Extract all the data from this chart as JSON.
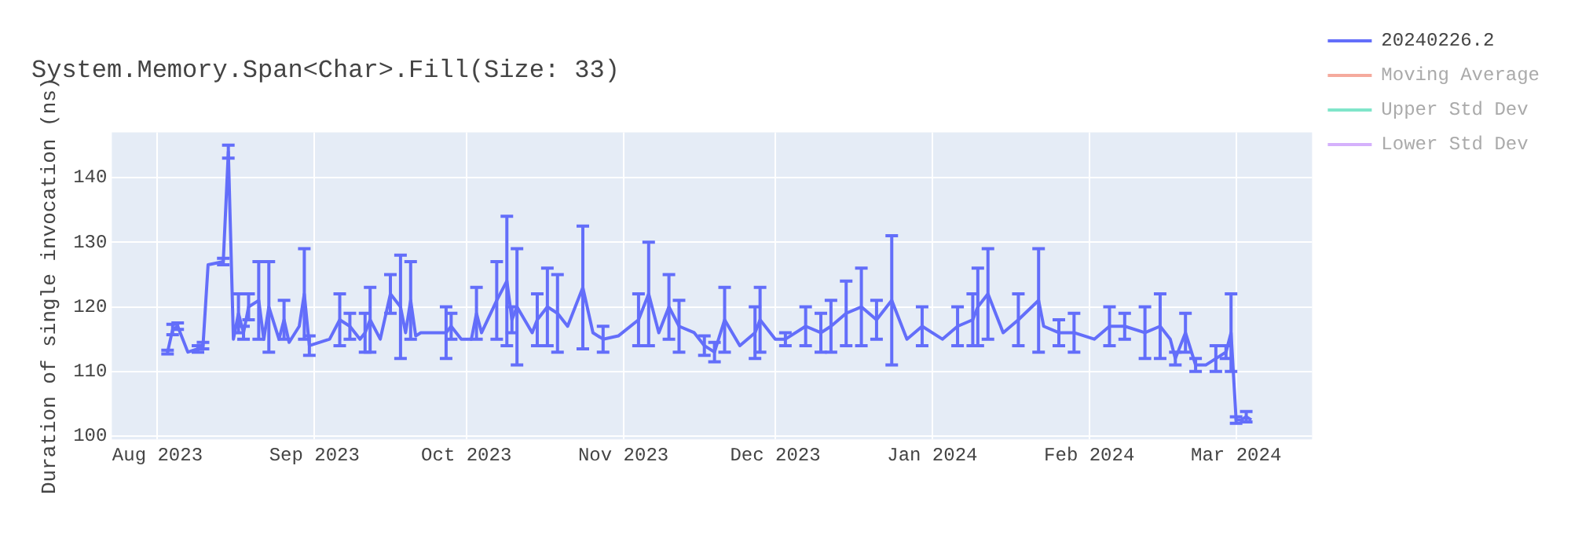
{
  "chart_data": {
    "type": "line",
    "title": "System.Memory.Span<Char>.Fill(Size: 33)",
    "ylabel": "Duration of single invocation (ns)",
    "x": [
      "2023-08-03",
      "2023-08-04",
      "2023-08-05",
      "2023-08-07",
      "2023-08-09",
      "2023-08-10",
      "2023-08-11",
      "2023-08-14",
      "2023-08-15",
      "2023-08-16",
      "2023-08-17",
      "2023-08-18",
      "2023-08-19",
      "2023-08-21",
      "2023-08-22",
      "2023-08-23",
      "2023-08-25",
      "2023-08-26",
      "2023-08-27",
      "2023-08-29",
      "2023-08-30",
      "2023-08-31",
      "2023-09-04",
      "2023-09-06",
      "2023-09-08",
      "2023-09-10",
      "2023-09-11",
      "2023-09-12",
      "2023-09-14",
      "2023-09-16",
      "2023-09-18",
      "2023-09-19",
      "2023-09-20",
      "2023-09-21",
      "2023-09-22",
      "2023-09-27",
      "2023-09-28",
      "2023-09-30",
      "2023-10-02",
      "2023-10-03",
      "2023-10-04",
      "2023-10-07",
      "2023-10-09",
      "2023-10-10",
      "2023-10-11",
      "2023-10-14",
      "2023-10-15",
      "2023-10-17",
      "2023-10-19",
      "2023-10-21",
      "2023-10-24",
      "2023-10-26",
      "2023-10-28",
      "2023-10-31",
      "2023-11-04",
      "2023-11-06",
      "2023-11-08",
      "2023-11-10",
      "2023-11-12",
      "2023-11-15",
      "2023-11-17",
      "2023-11-19",
      "2023-11-21",
      "2023-11-24",
      "2023-11-27",
      "2023-11-28",
      "2023-12-01",
      "2023-12-03",
      "2023-12-07",
      "2023-12-10",
      "2023-12-12",
      "2023-12-15",
      "2023-12-18",
      "2023-12-21",
      "2023-12-24",
      "2023-12-27",
      "2023-12-30",
      "2024-01-03",
      "2024-01-06",
      "2024-01-09",
      "2024-01-10",
      "2024-01-12",
      "2024-01-15",
      "2024-01-18",
      "2024-01-22",
      "2024-01-23",
      "2024-01-26",
      "2024-01-29",
      "2024-02-02",
      "2024-02-05",
      "2024-02-08",
      "2024-02-12",
      "2024-02-15",
      "2024-02-17",
      "2024-02-18",
      "2024-02-20",
      "2024-02-22",
      "2024-02-24",
      "2024-02-26",
      "2024-02-28",
      "2024-02-29",
      "2024-03-01",
      "2024-03-02",
      "2024-03-03",
      "2024-03-04"
    ],
    "series": [
      {
        "name": "20240226.2",
        "color": "#636efa",
        "values": [
          113,
          116.5,
          117,
          113,
          113.5,
          114,
          126.5,
          127,
          144,
          115,
          119,
          116,
          120,
          121,
          115,
          120,
          115,
          118,
          114.5,
          117,
          122,
          114,
          115,
          118,
          117,
          115,
          116,
          118,
          115,
          122,
          120,
          116,
          121,
          115.5,
          116,
          116,
          117,
          115,
          115,
          119,
          116,
          121,
          124,
          118,
          120,
          116,
          118,
          120,
          119,
          117,
          123,
          116,
          115,
          115.5,
          118,
          122,
          116,
          120,
          117,
          116,
          114,
          113,
          118,
          114,
          116,
          118,
          115,
          115,
          117,
          116,
          117,
          119,
          120,
          118,
          121,
          115,
          117,
          115,
          117,
          118,
          120,
          122,
          116,
          118,
          121,
          117,
          116,
          116,
          115,
          117,
          117,
          116,
          117,
          115,
          112,
          116,
          111,
          111,
          112,
          113,
          116,
          102.5,
          102.5,
          103,
          102.5
        ],
        "errors": [
          0.3,
          0.8,
          0.5,
          null,
          0.5,
          0.5,
          null,
          0.5,
          1,
          null,
          3,
          1,
          2,
          6,
          null,
          7,
          null,
          3,
          null,
          null,
          7,
          1.5,
          null,
          4,
          2,
          null,
          3,
          5,
          null,
          3,
          8,
          null,
          6,
          null,
          null,
          4,
          2,
          null,
          null,
          4,
          null,
          6,
          10,
          2,
          9,
          null,
          4,
          6,
          6,
          null,
          9.5,
          null,
          2,
          null,
          4,
          8,
          null,
          5,
          4,
          null,
          1.5,
          1.5,
          5,
          null,
          4,
          5,
          null,
          1,
          3,
          3,
          4,
          5,
          6,
          3,
          10,
          null,
          3,
          null,
          3,
          4,
          6,
          7,
          null,
          4,
          8,
          null,
          2,
          3,
          null,
          3,
          2,
          4,
          5,
          null,
          1,
          3,
          1,
          null,
          2,
          1,
          6,
          0.5,
          null,
          0.8,
          null
        ]
      },
      {
        "name": "Moving Average",
        "color": "#f5aa9d",
        "values": [
          null,
          null,
          null,
          null,
          null,
          null,
          null,
          null,
          null,
          null,
          null,
          null,
          null,
          null,
          null,
          null,
          null,
          null,
          null,
          null,
          null,
          null,
          null,
          null,
          null,
          null,
          null,
          null,
          null,
          null,
          null,
          null,
          null,
          null,
          null,
          null,
          null,
          null,
          null,
          null,
          null,
          null,
          null,
          null,
          null,
          null,
          null,
          null,
          null,
          null,
          null,
          null,
          null,
          null,
          null,
          null,
          null,
          null,
          null,
          null,
          null,
          null,
          null,
          null,
          null,
          null,
          null,
          null,
          null,
          null,
          null,
          null,
          null,
          null,
          null,
          null,
          null,
          null,
          null,
          null,
          null,
          null,
          null,
          null,
          null,
          null,
          null,
          null,
          null,
          null,
          null,
          null,
          null,
          null,
          null,
          null,
          null,
          null,
          null,
          null,
          null,
          null,
          null,
          null,
          null
        ]
      },
      {
        "name": "Upper Std Dev",
        "color": "#80e5ca",
        "values": [
          null,
          null,
          null,
          null,
          null,
          null,
          null,
          null,
          null,
          null,
          null,
          null,
          null,
          null,
          null,
          null,
          null,
          null,
          null,
          null,
          null,
          null,
          null,
          null,
          null,
          null,
          null,
          null,
          null,
          null,
          null,
          null,
          null,
          null,
          null,
          null,
          null,
          null,
          null,
          null,
          null,
          null,
          null,
          null,
          null,
          null,
          null,
          null,
          null,
          null,
          null,
          null,
          null,
          null,
          null,
          null,
          null,
          null,
          null,
          null,
          null,
          null,
          null,
          null,
          null,
          null,
          null,
          null,
          null,
          null,
          null,
          null,
          null,
          null,
          null,
          null,
          null,
          null,
          null,
          null,
          null,
          null,
          null,
          null,
          null,
          null,
          null,
          null,
          null,
          null,
          null,
          null,
          null,
          null,
          null,
          null,
          null,
          null,
          null,
          null,
          null,
          null,
          null,
          null,
          null
        ]
      },
      {
        "name": "Lower Std Dev",
        "color": "#d5b1fc",
        "values": [
          null,
          null,
          null,
          null,
          null,
          null,
          null,
          null,
          null,
          null,
          null,
          null,
          null,
          null,
          null,
          null,
          null,
          null,
          null,
          null,
          null,
          null,
          null,
          null,
          null,
          null,
          null,
          null,
          null,
          null,
          null,
          null,
          null,
          null,
          null,
          null,
          null,
          null,
          null,
          null,
          null,
          null,
          null,
          null,
          null,
          null,
          null,
          null,
          null,
          null,
          null,
          null,
          null,
          null,
          null,
          null,
          null,
          null,
          null,
          null,
          null,
          null,
          null,
          null,
          null,
          null,
          null,
          null,
          null,
          null,
          null,
          null,
          null,
          null,
          null,
          null,
          null,
          null,
          null,
          null,
          null,
          null,
          null,
          null,
          null,
          null,
          null,
          null,
          null,
          null,
          null,
          null,
          null,
          null,
          null,
          null,
          null,
          null,
          null,
          null,
          null,
          null,
          null,
          null,
          null
        ]
      }
    ],
    "xlim": [
      "2023-07-23",
      "2024-03-16"
    ],
    "xticks": [
      {
        "value": "2023-08-01",
        "label": "Aug 2023"
      },
      {
        "value": "2023-09-01",
        "label": "Sep 2023"
      },
      {
        "value": "2023-10-01",
        "label": "Oct 2023"
      },
      {
        "value": "2023-11-01",
        "label": "Nov 2023"
      },
      {
        "value": "2023-12-01",
        "label": "Dec 2023"
      },
      {
        "value": "2024-01-01",
        "label": "Jan 2024"
      },
      {
        "value": "2024-02-01",
        "label": "Feb 2024"
      },
      {
        "value": "2024-03-01",
        "label": "Mar 2024"
      }
    ],
    "ylim": [
      99.5,
      147
    ],
    "yticks": [
      100,
      110,
      120,
      130,
      140
    ],
    "grid": true,
    "legend": "top right",
    "marker": "none",
    "line_style": "solid"
  }
}
